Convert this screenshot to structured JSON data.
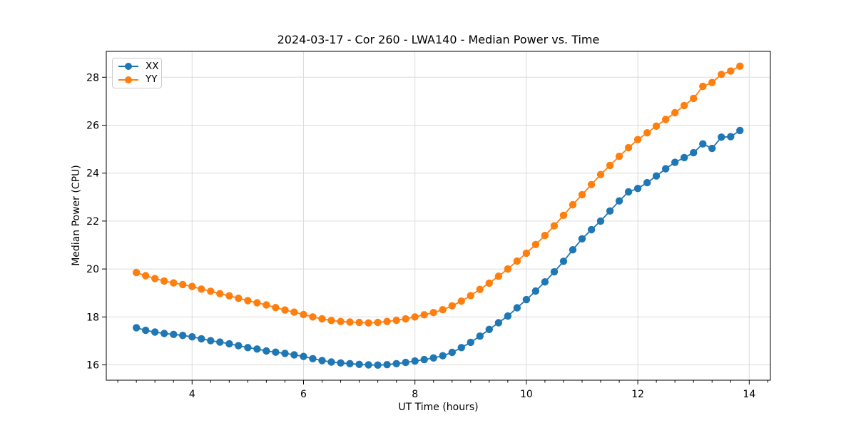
{
  "chart_data": {
    "type": "line",
    "title": "2024-03-17 - Cor 260 - LWA140 - Median Power vs. Time",
    "xlabel": "UT Time (hours)",
    "ylabel": "Median Power (CPU)",
    "xlim": [
      2.46,
      14.38
    ],
    "ylim": [
      15.36,
      29.08
    ],
    "x_major_ticks": [
      4,
      6,
      8,
      10,
      12,
      14
    ],
    "x_minor_interval": 0.33333,
    "y_major_ticks": [
      16,
      18,
      20,
      22,
      24,
      26,
      28
    ],
    "grid": true,
    "grid_color": "#dcdcdc",
    "axis_color": "#000000",
    "background": "#ffffff",
    "legend_position": "upper-left",
    "x": [
      3,
      3.167,
      3.333,
      3.5,
      3.667,
      3.833,
      4,
      4.167,
      4.333,
      4.5,
      4.667,
      4.833,
      5,
      5.167,
      5.333,
      5.5,
      5.667,
      5.833,
      6,
      6.167,
      6.333,
      6.5,
      6.667,
      6.833,
      7,
      7.167,
      7.333,
      7.5,
      7.667,
      7.833,
      8,
      8.167,
      8.333,
      8.5,
      8.667,
      8.833,
      9,
      9.167,
      9.333,
      9.5,
      9.667,
      9.833,
      10,
      10.167,
      10.333,
      10.5,
      10.667,
      10.833,
      11,
      11.167,
      11.333,
      11.5,
      11.667,
      11.833,
      12,
      12.167,
      12.333,
      12.5,
      12.667,
      12.833,
      13,
      13.167,
      13.333,
      13.5,
      13.667,
      13.833
    ],
    "series": [
      {
        "name": "XX",
        "color": "#1f77b4",
        "values": [
          17.55,
          17.44,
          17.37,
          17.31,
          17.27,
          17.23,
          17.17,
          17.09,
          17.01,
          16.95,
          16.88,
          16.8,
          16.72,
          16.66,
          16.58,
          16.53,
          16.48,
          16.42,
          16.35,
          16.26,
          16.18,
          16.12,
          16.08,
          16.05,
          16.02,
          16.0,
          15.99,
          16.01,
          16.05,
          16.1,
          16.16,
          16.22,
          16.29,
          16.38,
          16.52,
          16.72,
          16.94,
          17.2,
          17.48,
          17.76,
          18.04,
          18.38,
          18.72,
          19.08,
          19.46,
          19.88,
          20.32,
          20.8,
          21.26,
          21.64,
          22.0,
          22.42,
          22.84,
          23.22,
          23.36,
          23.6,
          23.88,
          24.18,
          24.45,
          24.65,
          24.85,
          25.22,
          25.03,
          25.5,
          25.52,
          25.78
        ]
      },
      {
        "name": "YY",
        "color": "#ff7f0e",
        "values": [
          19.85,
          19.72,
          19.6,
          19.5,
          19.42,
          19.35,
          19.27,
          19.16,
          19.07,
          18.97,
          18.88,
          18.78,
          18.68,
          18.59,
          18.5,
          18.39,
          18.29,
          18.2,
          18.1,
          18.0,
          17.92,
          17.85,
          17.81,
          17.79,
          17.77,
          17.75,
          17.77,
          17.81,
          17.86,
          17.92,
          18.0,
          18.09,
          18.18,
          18.3,
          18.46,
          18.66,
          18.89,
          19.15,
          19.41,
          19.7,
          20.0,
          20.33,
          20.66,
          21.02,
          21.4,
          21.8,
          22.24,
          22.68,
          23.1,
          23.52,
          23.94,
          24.32,
          24.7,
          25.06,
          25.4,
          25.68,
          25.96,
          26.24,
          26.52,
          26.82,
          27.12,
          27.62,
          27.78,
          28.12,
          28.26,
          28.46
        ]
      }
    ]
  }
}
